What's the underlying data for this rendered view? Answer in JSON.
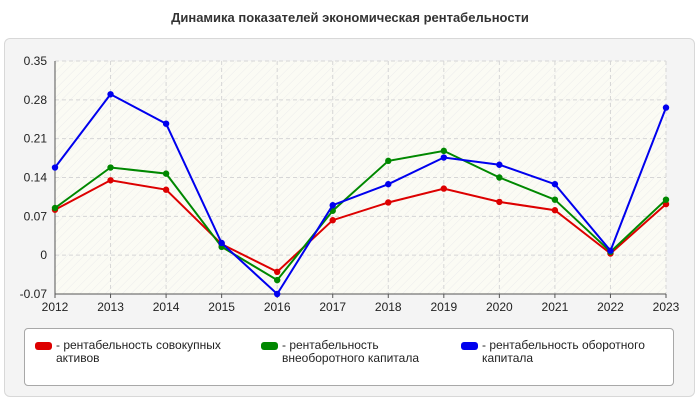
{
  "chart_data": {
    "type": "line",
    "title": "Динамика показателей экономическая рентабельности",
    "x": [
      "2012",
      "2013",
      "2014",
      "2015",
      "2016",
      "2017",
      "2018",
      "2019",
      "2020",
      "2021",
      "2022",
      "2023"
    ],
    "ylim": [
      -0.07,
      0.35
    ],
    "yticks": [
      "0.35",
      "0.28",
      "0.21",
      "0.14",
      "0.07",
      "0",
      "-0.07"
    ],
    "ytick_values": [
      0.35,
      0.28,
      0.21,
      0.14,
      0.07,
      0,
      -0.07
    ],
    "grid": true,
    "legend_position": "bottom",
    "series": [
      {
        "name": "- рентабельность совокупных активов",
        "color": "#dd0000",
        "values": [
          0.082,
          0.135,
          0.118,
          0.02,
          -0.03,
          0.063,
          0.095,
          0.12,
          0.096,
          0.081,
          0.003,
          0.092
        ]
      },
      {
        "name": "- рентабельность внеоборотного капитала",
        "color": "#008800",
        "values": [
          0.085,
          0.158,
          0.147,
          0.015,
          -0.045,
          0.08,
          0.17,
          0.188,
          0.14,
          0.1,
          0.006,
          0.1
        ]
      },
      {
        "name": "- рентабельность оборотного капитала",
        "color": "#0000ee",
        "values": [
          0.158,
          0.29,
          0.237,
          0.022,
          -0.07,
          0.09,
          0.128,
          0.176,
          0.163,
          0.128,
          0.008,
          0.266
        ]
      }
    ]
  }
}
